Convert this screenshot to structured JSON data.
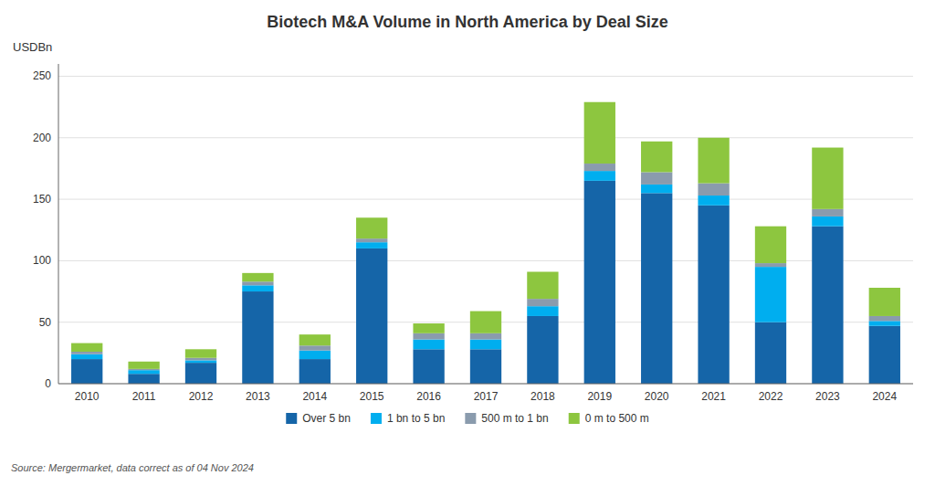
{
  "chart_data": {
    "type": "bar",
    "stacked": true,
    "title": "Biotech M&A Volume in North America by Deal Size",
    "ylabel": "USDBn",
    "categories": [
      "2010",
      "2011",
      "2012",
      "2013",
      "2014",
      "2015",
      "2016",
      "2017",
      "2018",
      "2019",
      "2020",
      "2021",
      "2022",
      "2023",
      "2024"
    ],
    "series": [
      {
        "name": "Over 5 bn",
        "color": "#1565A8",
        "values": [
          20,
          8,
          17,
          75,
          20,
          110,
          28,
          28,
          55,
          165,
          155,
          145,
          50,
          128,
          47
        ]
      },
      {
        "name": "1 bn to 5 bn",
        "color": "#00AEEF",
        "values": [
          4,
          3,
          2,
          5,
          7,
          5,
          8,
          8,
          8,
          8,
          7,
          8,
          45,
          8,
          4
        ]
      },
      {
        "name": "500 m to 1 bn",
        "color": "#8A9BAD",
        "values": [
          2,
          1,
          2,
          3,
          4,
          3,
          5,
          5,
          6,
          6,
          10,
          10,
          3,
          6,
          4
        ]
      },
      {
        "name": "0 m to 500 m",
        "color": "#8DC63F",
        "values": [
          7,
          6,
          7,
          7,
          9,
          17,
          8,
          18,
          22,
          50,
          25,
          37,
          30,
          50,
          23
        ]
      }
    ],
    "ylim": [
      0,
      260
    ],
    "yticks": [
      0,
      50,
      100,
      150,
      200,
      250
    ],
    "grid": true,
    "legend": "bottom",
    "annotations": [
      "Source: Mergermarket, data correct as of 04 Nov 2024"
    ]
  }
}
